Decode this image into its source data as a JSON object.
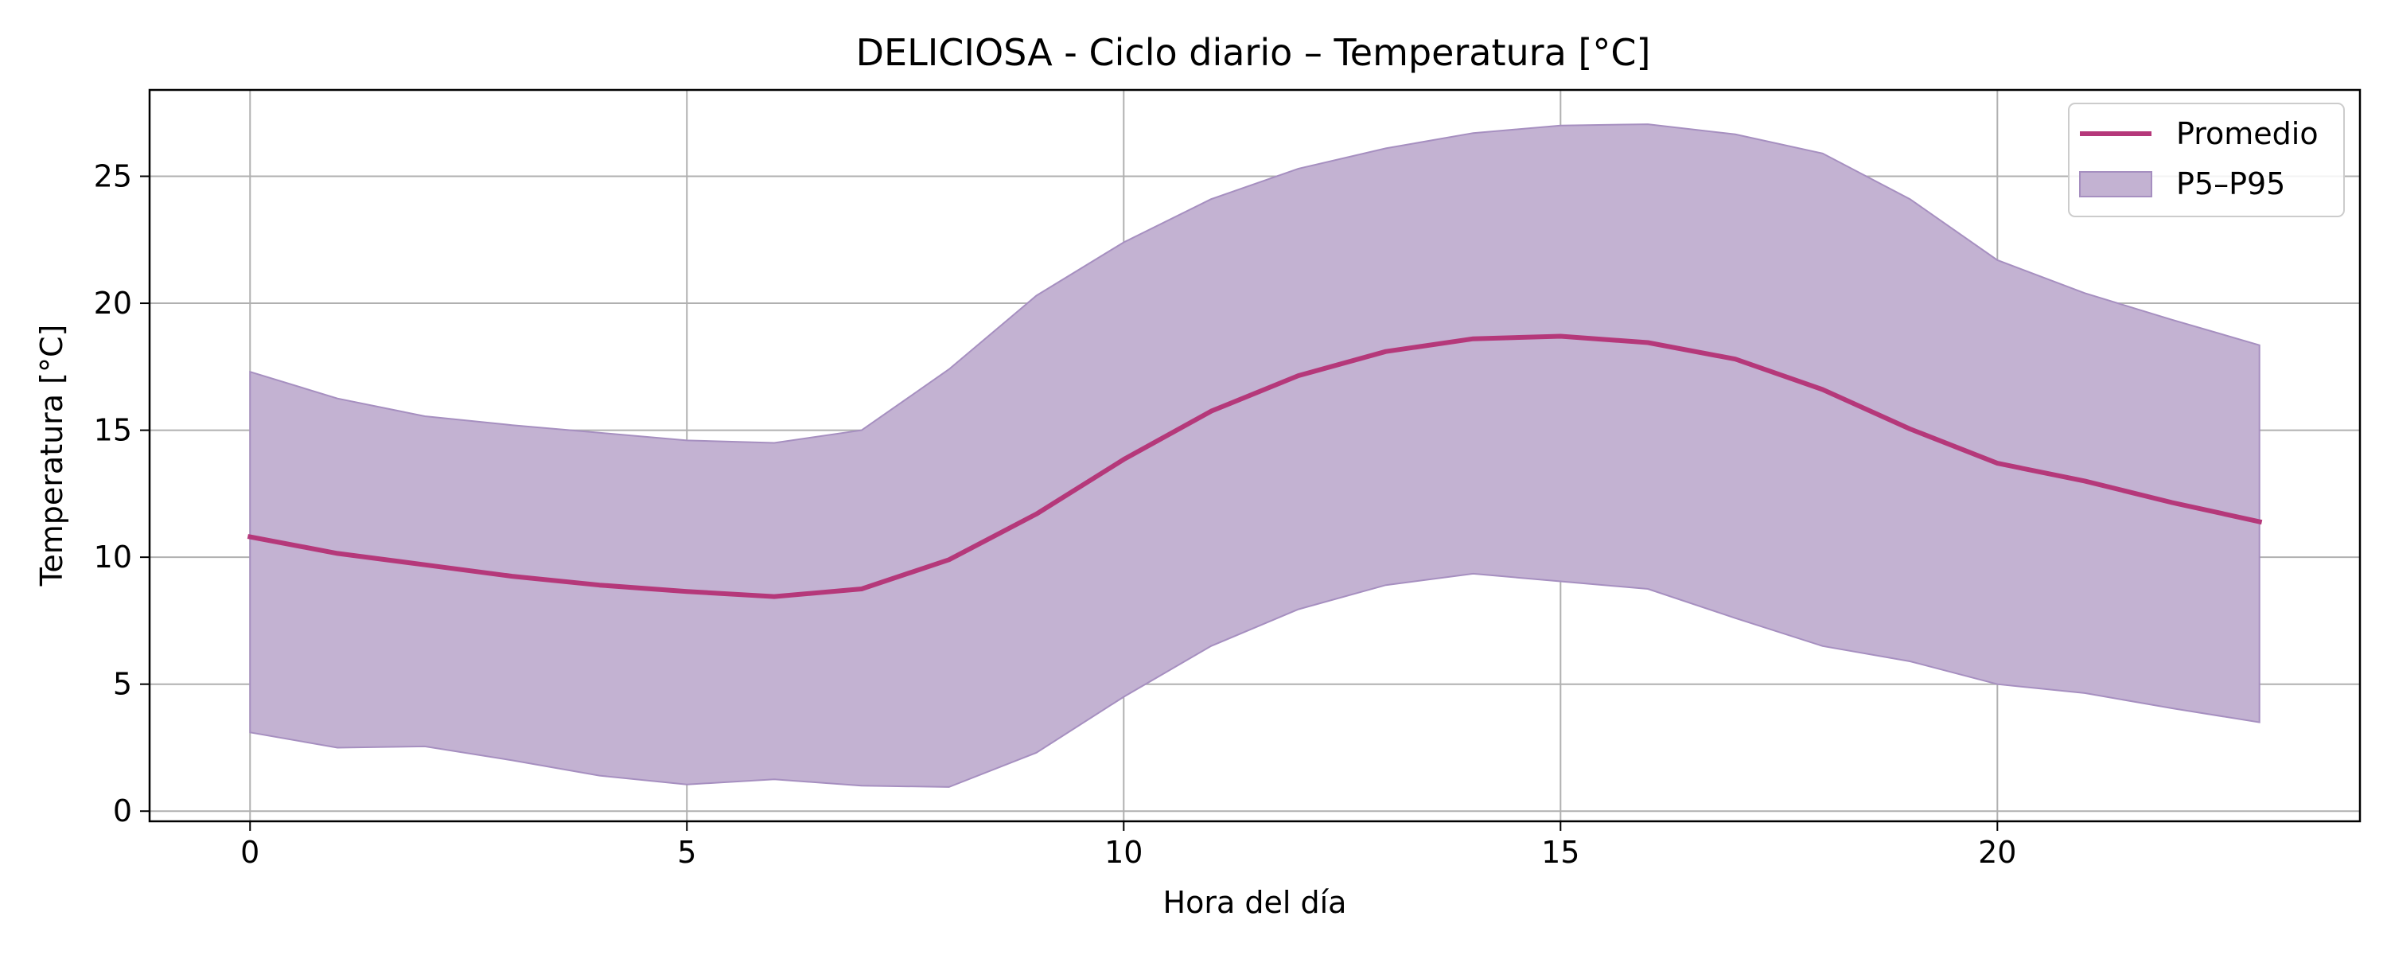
{
  "chart_data": {
    "type": "area",
    "title": "DELICIOSA - Ciclo diario – Temperatura [°C]",
    "xlabel": "Hora del día",
    "ylabel": "Temperatura [°C]",
    "xlim": [
      -1.15,
      24.15
    ],
    "ylim": [
      -0.4,
      28.4
    ],
    "xticks": [
      0,
      5,
      10,
      15,
      20
    ],
    "yticks": [
      0,
      5,
      10,
      15,
      20,
      25
    ],
    "grid": true,
    "legend_position": "top-right",
    "x": [
      0,
      1,
      2,
      3,
      4,
      5,
      6,
      7,
      8,
      9,
      10,
      11,
      12,
      13,
      14,
      15,
      16,
      17,
      18,
      19,
      20,
      21,
      22,
      23
    ],
    "series": [
      {
        "name": "Promedio",
        "kind": "line",
        "color": "#b5387a",
        "values": [
          10.8,
          10.15,
          9.7,
          9.25,
          8.9,
          8.65,
          8.45,
          8.75,
          9.9,
          11.7,
          13.85,
          15.75,
          17.15,
          18.1,
          18.6,
          18.7,
          18.45,
          17.8,
          16.6,
          15.05,
          13.7,
          13.0,
          12.15,
          11.4
        ]
      },
      {
        "name": "P5–P95",
        "kind": "band",
        "color": "#c3b2d2",
        "edge_color": "#a68fc0",
        "lower": [
          3.1,
          2.5,
          2.55,
          2.0,
          1.4,
          1.05,
          1.25,
          1.0,
          0.95,
          2.3,
          4.5,
          6.5,
          7.95,
          8.9,
          9.35,
          9.05,
          8.75,
          7.6,
          6.5,
          5.9,
          5.0,
          4.65,
          4.05,
          3.5
        ],
        "upper": [
          17.3,
          16.25,
          15.55,
          15.2,
          14.9,
          14.6,
          14.5,
          15.0,
          17.4,
          20.3,
          22.4,
          24.1,
          25.3,
          26.1,
          26.7,
          27.0,
          27.05,
          26.65,
          25.9,
          24.1,
          21.7,
          20.4,
          19.35,
          18.35
        ]
      }
    ]
  }
}
